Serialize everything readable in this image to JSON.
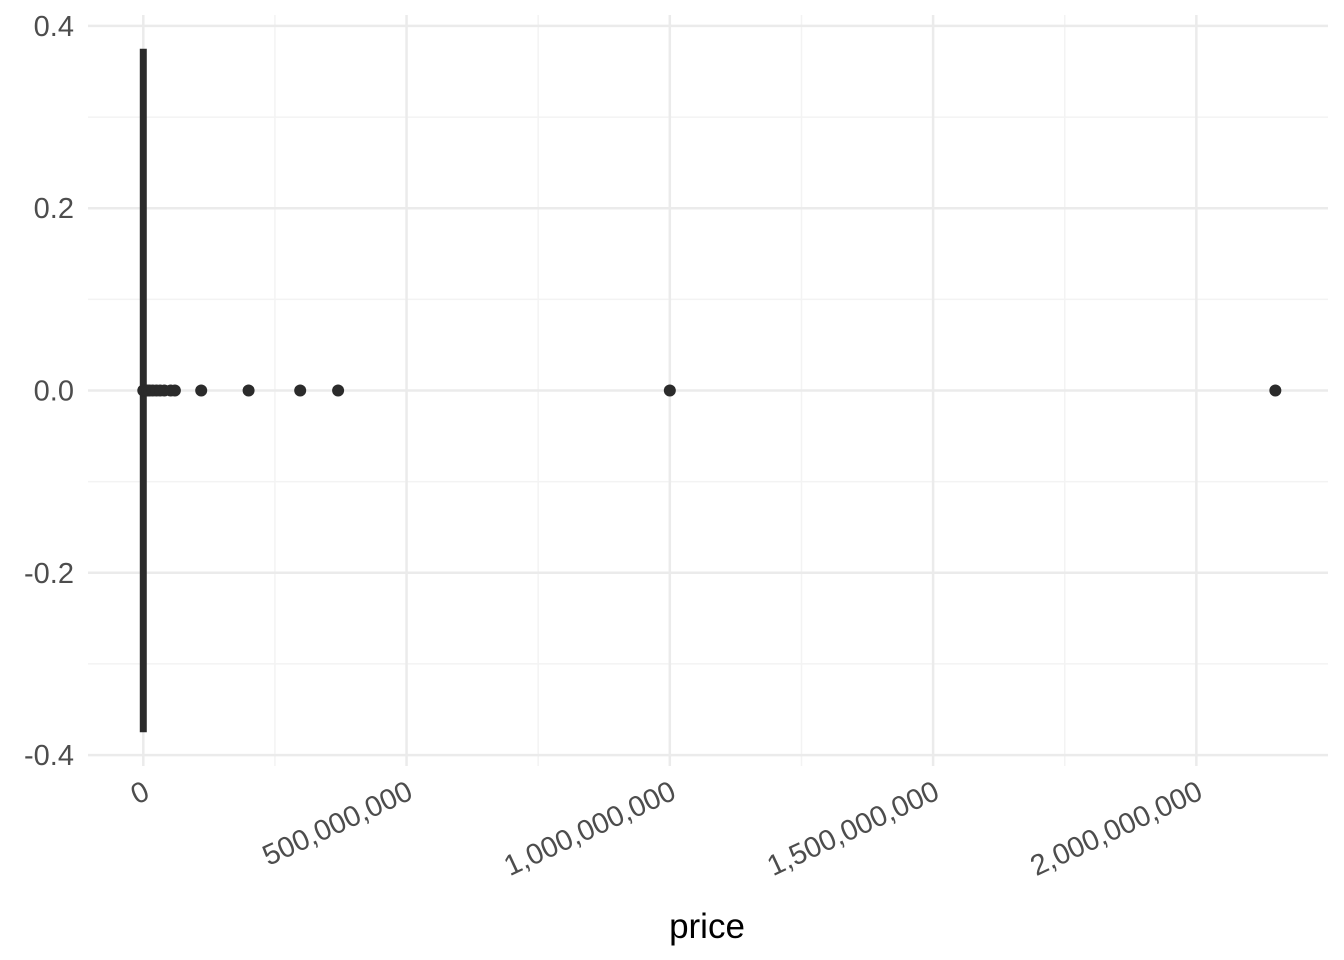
{
  "chart_data": {
    "type": "box",
    "title": "",
    "xlabel": "price",
    "ylabel": "",
    "x_ticks": [
      {
        "value": 0,
        "label": "0"
      },
      {
        "value": 500000000,
        "label": "500,000,000"
      },
      {
        "value": 1000000000,
        "label": "1,000,000,000"
      },
      {
        "value": 1500000000,
        "label": "1,500,000,000"
      },
      {
        "value": 2000000000,
        "label": "2,000,000,000"
      }
    ],
    "y_ticks": [
      {
        "value": 0.4,
        "label": "0.4"
      },
      {
        "value": 0.2,
        "label": "0.2"
      },
      {
        "value": 0.0,
        "label": "0.0"
      },
      {
        "value": -0.2,
        "label": "-0.2"
      },
      {
        "value": -0.4,
        "label": "-0.4"
      }
    ],
    "xlim": [
      -105000000,
      2250000000
    ],
    "ylim": [
      -0.4,
      0.4
    ],
    "box": {
      "min": 0,
      "q1": 0,
      "median": 0,
      "q3": 0,
      "max": 0,
      "y_halfwidth": 0.375
    },
    "outliers": [
      0,
      1000000,
      2000000,
      3000000,
      5000000,
      8000000,
      12000000,
      18000000,
      25000000,
      32000000,
      40000000,
      52000000,
      60000000,
      110000000,
      200000000,
      298000000,
      370000000,
      1000000000,
      2150000000
    ],
    "grid": true,
    "colors": {
      "mark": "#2b2b2b",
      "grid_major": "#ebebeb",
      "grid_minor": "#f3f3f3",
      "tick_text": "#4d4d4d"
    }
  }
}
